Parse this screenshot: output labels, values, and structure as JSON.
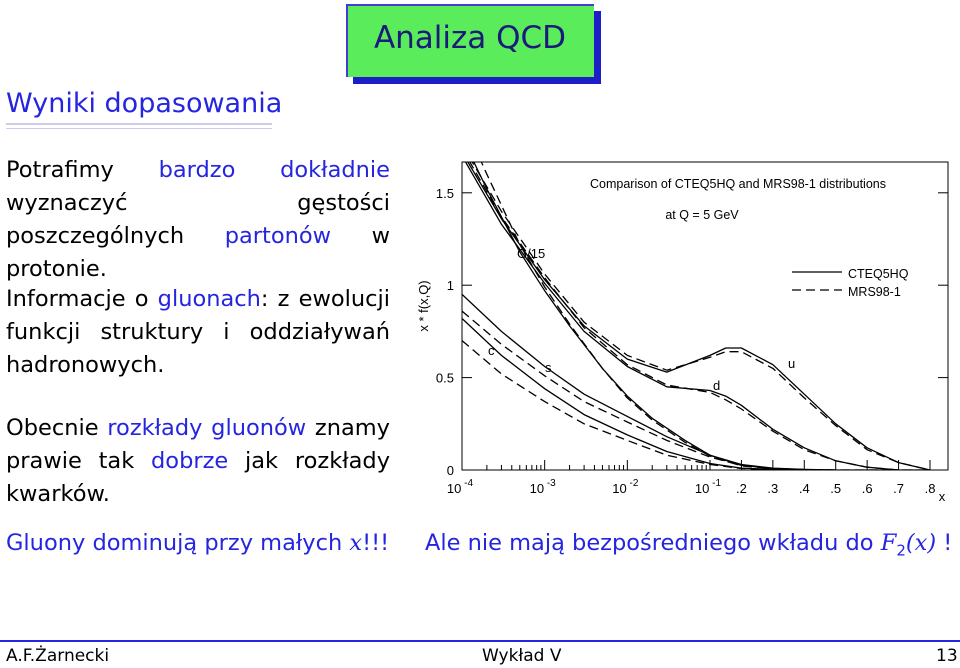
{
  "slide": {
    "title": "Analiza QCD",
    "subtitle": "Wyniki dopasowania",
    "para1": [
      {
        "t": "Potrafimy ",
        "c": "black"
      },
      {
        "t": "bardzo dokładnie",
        "c": "blue"
      },
      {
        "t": " wyznaczyć gęstości poszczególnych ",
        "c": "black"
      },
      {
        "t": "partonów",
        "c": "blue"
      },
      {
        "t": " w protonie.",
        "c": "black"
      }
    ],
    "para2": [
      {
        "t": "Informacje o ",
        "c": "black"
      },
      {
        "t": "gluonach",
        "c": "blue"
      },
      {
        "t": ": z ewolucji funkcji struktury i oddziaływań hadronowych.",
        "c": "black"
      }
    ],
    "para3": [
      {
        "t": "Obecnie ",
        "c": "black"
      },
      {
        "t": "rozkłady gluonów",
        "c": "blue"
      },
      {
        "t": " znamy prawie tak ",
        "c": "black"
      },
      {
        "t": "dobrze",
        "c": "blue"
      },
      {
        "t": " jak rozkłady kwarków.",
        "c": "black"
      }
    ],
    "bottom_left_blue": "Gluony dominują przy małych ",
    "bottom_left_math": "x",
    "bottom_left_end": "!!!",
    "bottom_right_text": "Ale nie mają bezpośredniego wkładu do ",
    "bottom_right_math_F": "F",
    "bottom_right_math_sub": "2",
    "bottom_right_math_arg": "(x)",
    "bottom_right_end": " !",
    "footer": {
      "author": "A.F.Żarnecki",
      "lecture": "Wykład V",
      "page": "13"
    }
  },
  "colors": {
    "blue": "#2525e0",
    "title_green": "#5bec5b",
    "title_shadow": "#1e1ec8",
    "footer_rule": "#2525e0"
  },
  "chart_data": {
    "type": "line",
    "title": "Comparison of CTEQ5HQ and MRS98-1 distributions",
    "subtitle": "at Q = 5 GeV",
    "ylabel": "x * f(x,Q)",
    "xlabel": "x",
    "x_scale": "log below 0.1, linear above 0.1",
    "ylim": [
      0,
      1.5
    ],
    "yticks": [
      "0",
      "0.5",
      "1",
      "1.5"
    ],
    "xticks_log": [
      {
        "base": "10",
        "exp": "-4",
        "x": 0.0001
      },
      {
        "base": "10",
        "exp": "-3",
        "x": 0.001
      },
      {
        "base": "10",
        "exp": "-2",
        "x": 0.01
      },
      {
        "base": "10",
        "exp": "-1",
        "x": 0.1
      }
    ],
    "xticks_lin": [
      {
        "label": ".2",
        "x": 0.2
      },
      {
        "label": ".3",
        "x": 0.3
      },
      {
        "label": ".4",
        "x": 0.4
      },
      {
        "label": ".5",
        "x": 0.5
      },
      {
        "label": ".6",
        "x": 0.6
      },
      {
        "label": ".7",
        "x": 0.7
      },
      {
        "label": ".8",
        "x": 0.8
      }
    ],
    "legend": [
      {
        "name": "CTEQ5HQ",
        "style": "solid"
      },
      {
        "name": "MRS98-1",
        "style": "dashed"
      }
    ],
    "legend_position": "right",
    "curve_labels": [
      "G/15",
      "c",
      "s",
      "d",
      "u"
    ],
    "series": [
      {
        "set": "CTEQ5HQ",
        "name": "G/15",
        "x": [
          0.0001,
          0.0002,
          0.0005,
          0.001,
          0.002,
          0.005,
          0.01,
          0.02,
          0.05,
          0.1,
          0.2,
          0.3,
          0.4,
          0.5,
          0.6,
          0.7
        ],
        "y": [
          1.8,
          1.52,
          1.18,
          0.97,
          0.78,
          0.55,
          0.4,
          0.28,
          0.16,
          0.08,
          0.025,
          0.008,
          0.002,
          0.0,
          0.0,
          0.0
        ]
      },
      {
        "set": "MRS98-1",
        "name": "G/15",
        "x": [
          0.0001,
          0.0002,
          0.0005,
          0.001,
          0.002,
          0.005,
          0.01,
          0.02,
          0.05,
          0.1,
          0.2,
          0.3,
          0.4,
          0.5,
          0.6,
          0.7
        ],
        "y": [
          1.9,
          1.6,
          1.22,
          0.99,
          0.79,
          0.55,
          0.39,
          0.27,
          0.15,
          0.075,
          0.022,
          0.007,
          0.002,
          0.0,
          0.0,
          0.0
        ]
      },
      {
        "set": "CTEQ5HQ",
        "name": "u",
        "x": [
          0.0001,
          0.0003,
          0.001,
          0.003,
          0.01,
          0.03,
          0.1,
          0.15,
          0.2,
          0.3,
          0.4,
          0.5,
          0.6,
          0.7,
          0.8
        ],
        "y": [
          1.72,
          1.36,
          1.03,
          0.78,
          0.6,
          0.53,
          0.62,
          0.66,
          0.66,
          0.57,
          0.41,
          0.25,
          0.12,
          0.04,
          0.0
        ]
      },
      {
        "set": "MRS98-1",
        "name": "u",
        "x": [
          0.0001,
          0.0003,
          0.001,
          0.003,
          0.01,
          0.03,
          0.1,
          0.15,
          0.2,
          0.3,
          0.4,
          0.5,
          0.6,
          0.7,
          0.8
        ],
        "y": [
          1.76,
          1.4,
          1.06,
          0.8,
          0.62,
          0.54,
          0.61,
          0.64,
          0.64,
          0.55,
          0.39,
          0.24,
          0.11,
          0.04,
          0.0
        ]
      },
      {
        "set": "CTEQ5HQ",
        "name": "d",
        "x": [
          0.0001,
          0.0003,
          0.001,
          0.003,
          0.01,
          0.03,
          0.1,
          0.15,
          0.2,
          0.3,
          0.4,
          0.5,
          0.6,
          0.7,
          0.8
        ],
        "y": [
          1.7,
          1.33,
          1.01,
          0.75,
          0.56,
          0.45,
          0.43,
          0.4,
          0.35,
          0.22,
          0.12,
          0.05,
          0.015,
          0.0,
          0.0
        ]
      },
      {
        "set": "MRS98-1",
        "name": "d",
        "x": [
          0.0001,
          0.0003,
          0.001,
          0.003,
          0.01,
          0.03,
          0.1,
          0.15,
          0.2,
          0.3,
          0.4,
          0.5,
          0.6,
          0.7,
          0.8
        ],
        "y": [
          1.74,
          1.37,
          1.04,
          0.77,
          0.57,
          0.46,
          0.42,
          0.38,
          0.33,
          0.21,
          0.11,
          0.05,
          0.015,
          0.0,
          0.0
        ]
      },
      {
        "set": "CTEQ5HQ",
        "name": "s",
        "x": [
          0.0001,
          0.0003,
          0.001,
          0.003,
          0.01,
          0.03,
          0.1,
          0.2,
          0.3,
          0.4,
          0.5
        ],
        "y": [
          0.95,
          0.75,
          0.56,
          0.41,
          0.29,
          0.18,
          0.08,
          0.03,
          0.01,
          0.003,
          0.0
        ]
      },
      {
        "set": "MRS98-1",
        "name": "s",
        "x": [
          0.0001,
          0.0003,
          0.001,
          0.003,
          0.01,
          0.03,
          0.1,
          0.2,
          0.3,
          0.4,
          0.5
        ],
        "y": [
          0.86,
          0.68,
          0.51,
          0.37,
          0.26,
          0.16,
          0.07,
          0.025,
          0.008,
          0.002,
          0.0
        ]
      },
      {
        "set": "CTEQ5HQ",
        "name": "c",
        "x": [
          0.0001,
          0.0003,
          0.001,
          0.003,
          0.01,
          0.03,
          0.1,
          0.2,
          0.3,
          0.4
        ],
        "y": [
          0.82,
          0.62,
          0.44,
          0.3,
          0.19,
          0.1,
          0.035,
          0.01,
          0.003,
          0.0
        ]
      },
      {
        "set": "MRS98-1",
        "name": "c",
        "x": [
          0.0001,
          0.0003,
          0.001,
          0.003,
          0.01,
          0.03,
          0.1,
          0.2,
          0.3,
          0.4
        ],
        "y": [
          0.7,
          0.52,
          0.37,
          0.25,
          0.16,
          0.08,
          0.03,
          0.008,
          0.002,
          0.0
        ]
      }
    ]
  }
}
